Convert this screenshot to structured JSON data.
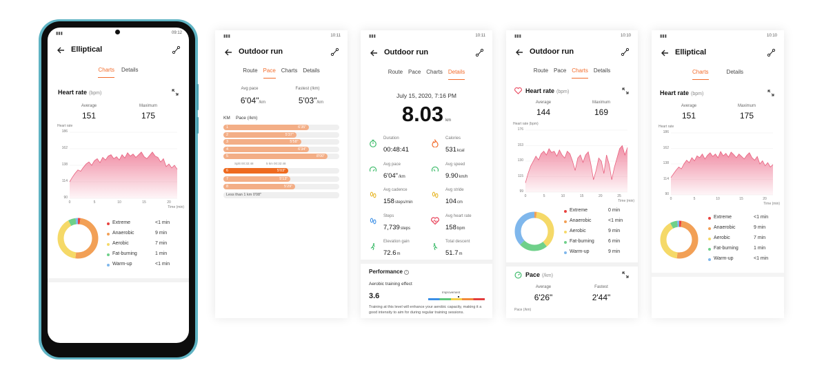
{
  "colors": {
    "accent": "#f26b2a",
    "phone_frame": "#5fb3c3",
    "extreme": "#e8433f",
    "anaerobic": "#f2a056",
    "aerobic": "#f5d968",
    "fat_burning": "#6fd08a",
    "warm_up": "#7fb7ec",
    "heart_fill": "#f08aa2"
  },
  "screen1": {
    "status_time": "09:12",
    "title": "Elliptical",
    "tabs": [
      "Charts",
      "Details"
    ],
    "active_tab": 0,
    "heart_title": "Heart rate",
    "heart_unit": "(bpm)",
    "avg_label": "Average",
    "avg_value": "151",
    "max_label": "Maximum",
    "max_value": "175",
    "y_title": "Heart rate",
    "y_ticks": [
      "186",
      "162",
      "138",
      "114",
      "90"
    ],
    "x_ticks": [
      "0",
      "5",
      "10",
      "15",
      "20"
    ],
    "x_title": "Time (min)",
    "zones": [
      {
        "name": "Extreme",
        "value": "<1 min"
      },
      {
        "name": "Anaerobic",
        "value": "9 min"
      },
      {
        "name": "Aerobic",
        "value": "7 min"
      },
      {
        "name": "Fat-burning",
        "value": "1 min"
      },
      {
        "name": "Warm-up",
        "value": "<1 min"
      }
    ]
  },
  "screen2": {
    "status_time": "10:11",
    "title": "Outdoor run",
    "tabs": [
      "Route",
      "Pace",
      "Charts",
      "Details"
    ],
    "active_tab": 1,
    "avg_pace_label": "Avg pace",
    "avg_pace_value": "6'04\"",
    "avg_pace_unit": "/km",
    "fastest_label": "Fastest (/km)",
    "fastest_value": "5'03\"",
    "fastest_unit": "/km",
    "col_km": "KM",
    "col_pace": "Pace (/km)",
    "splits_a": [
      {
        "km": "1",
        "pace": "6'35\"",
        "fill": 0.74
      },
      {
        "km": "2",
        "pace": "5'37\"",
        "fill": 0.63
      },
      {
        "km": "3",
        "pace": "5'58\"",
        "fill": 0.67
      },
      {
        "km": "4",
        "pace": "6'34\"",
        "fill": 0.74
      },
      {
        "km": "5",
        "pace": "8'00\"",
        "fill": 0.9
      }
    ],
    "split_note_a": "Split 00:32:48",
    "split_note_b": "5 km 00:32:48",
    "splits_b": [
      {
        "km": "6",
        "pace": "5'03\"",
        "fill": 0.56,
        "fastest": true
      },
      {
        "km": "7",
        "pace": "5'13\"",
        "fill": 0.58
      },
      {
        "km": "8",
        "pace": "5'29\"",
        "fill": 0.62
      }
    ],
    "less_than": "Less than 1 km 0'08\""
  },
  "screen3": {
    "status_time": "10:11",
    "title": "Outdoor run",
    "tabs": [
      "Route",
      "Pace",
      "Charts",
      "Details"
    ],
    "active_tab": 3,
    "date": "July 15, 2020, 7:16 PM",
    "distance": "8.03",
    "distance_unit": "km",
    "stats": [
      {
        "icon": "timer-icon",
        "label": "Duration",
        "value": "00:48:41",
        "unit": ""
      },
      {
        "icon": "flame-icon",
        "label": "Calories",
        "value": "531",
        "unit": "kcal"
      },
      {
        "icon": "gauge-icon",
        "label": "Avg pace",
        "value": "6'04\"",
        "unit": "/km"
      },
      {
        "icon": "speed-icon",
        "label": "Avg speed",
        "value": "9.90",
        "unit": "km/h"
      },
      {
        "icon": "footprints-icon",
        "label": "Avg cadence",
        "value": "158",
        "unit": "steps/min"
      },
      {
        "icon": "stride-icon",
        "label": "Avg stride",
        "value": "104",
        "unit": "cm"
      },
      {
        "icon": "steps-icon",
        "label": "Steps",
        "value": "7,739",
        "unit": "steps"
      },
      {
        "icon": "heart-rate-icon",
        "label": "Avg heart rate",
        "value": "158",
        "unit": "bpm"
      },
      {
        "icon": "climb-icon",
        "label": "Elevation gain",
        "value": "72.6",
        "unit": "m"
      },
      {
        "icon": "descent-icon",
        "label": "Total descent",
        "value": "51.7",
        "unit": "m"
      }
    ],
    "performance_title": "Performance",
    "aerobic_label": "Aerobic training effect",
    "aerobic_value": "3.6",
    "improvement_label": "Improvement",
    "performance_note": "Training at this level will enhance your aerobic capacity, making it a good intensity to aim for during regular training sessions."
  },
  "screen4": {
    "status_time": "10:10",
    "title": "Outdoor run",
    "tabs": [
      "Route",
      "Pace",
      "Charts",
      "Details"
    ],
    "active_tab": 2,
    "heart_title": "Heart rate",
    "heart_unit": "(bpm)",
    "avg_label": "Average",
    "avg_value": "144",
    "max_label": "Maximum",
    "max_value": "169",
    "y_title": "Heart rate (bpm)",
    "y_ticks": [
      "176",
      "153",
      "130",
      "115",
      "99"
    ],
    "x_ticks": [
      "0",
      "5",
      "10",
      "15",
      "20",
      "25"
    ],
    "x_title": "Time (min)",
    "zones": [
      {
        "name": "Extreme",
        "value": "0 min"
      },
      {
        "name": "Anaerobic",
        "value": "<1 min"
      },
      {
        "name": "Aerobic",
        "value": "9 min"
      },
      {
        "name": "Fat-burning",
        "value": "6 min"
      },
      {
        "name": "Warm-up",
        "value": "9 min"
      }
    ],
    "pace_title": "Pace",
    "pace_unit": "(/km)",
    "pace_avg_label": "Average",
    "pace_avg_value": "6'26\"",
    "pace_fast_label": "Fastest",
    "pace_fast_value": "2'44\"",
    "pace_y_title": "Pace (/km)"
  },
  "screen5": {
    "status_time": "10:10",
    "title": "Elliptical",
    "tabs": [
      "Charts",
      "Details"
    ],
    "active_tab": 0,
    "heart_title": "Heart rate",
    "heart_unit": "(bpm)",
    "avg_label": "Average",
    "avg_value": "151",
    "max_label": "Maximum",
    "max_value": "175",
    "y_title": "Heart rate",
    "y_ticks": [
      "186",
      "162",
      "138",
      "114",
      "90"
    ],
    "x_ticks": [
      "0",
      "5",
      "10",
      "15",
      "20"
    ],
    "x_title": "Time (min)",
    "zones": [
      {
        "name": "Extreme",
        "value": "<1 min"
      },
      {
        "name": "Anaerobic",
        "value": "9 min"
      },
      {
        "name": "Aerobic",
        "value": "7 min"
      },
      {
        "name": "Fat-burning",
        "value": "1 min"
      },
      {
        "name": "Warm-up",
        "value": "<1 min"
      }
    ]
  }
}
